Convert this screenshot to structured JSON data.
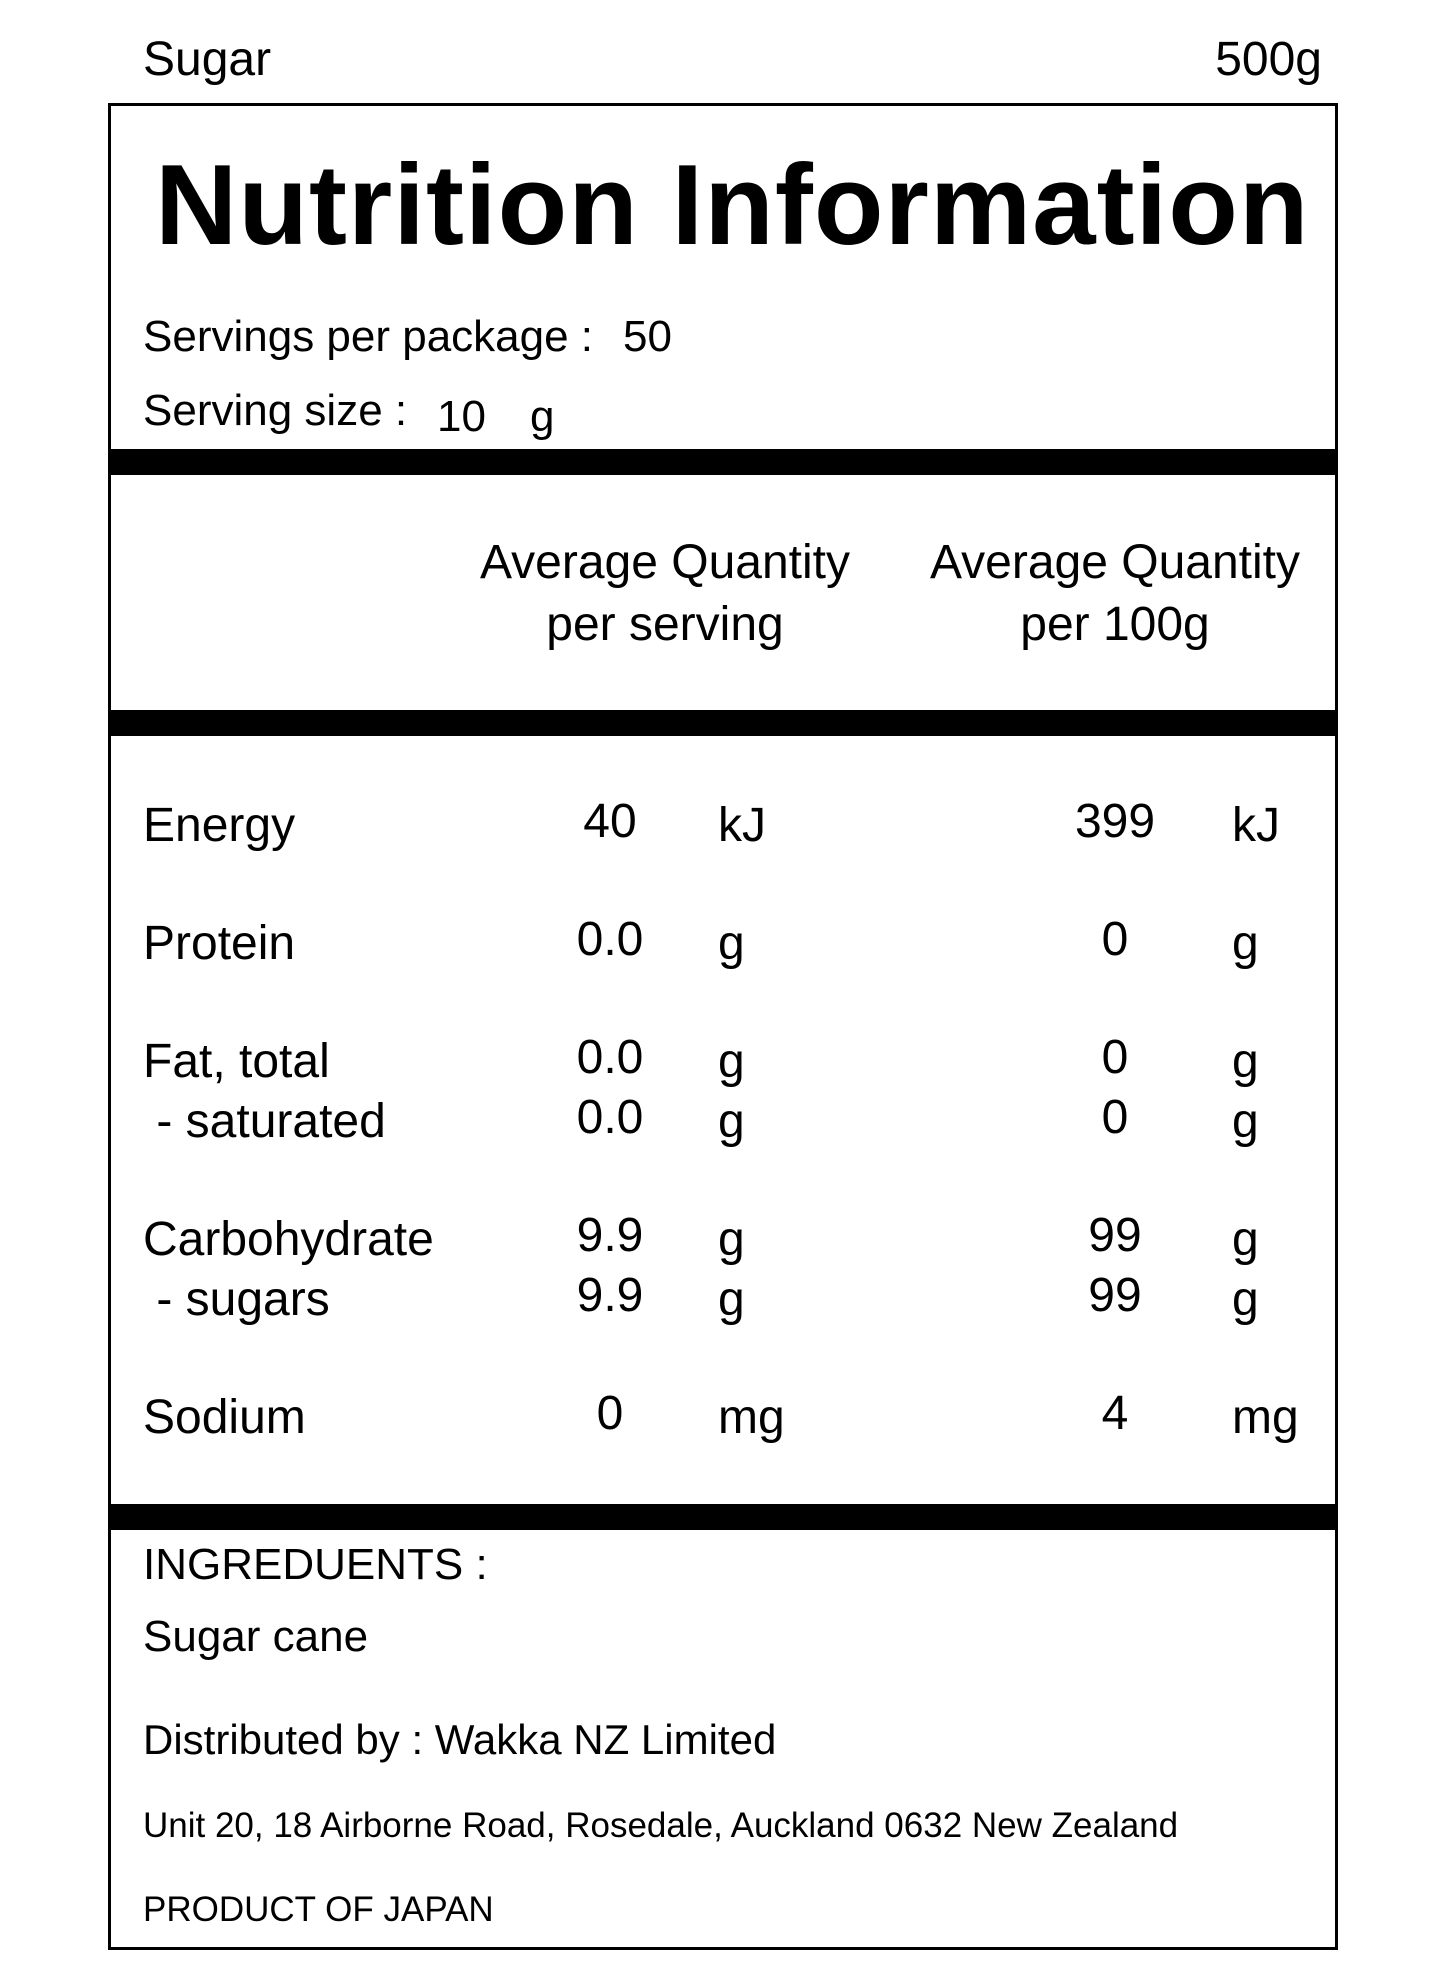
{
  "header": {
    "product": "Sugar",
    "weight": "500g"
  },
  "title": "Nutrition Information",
  "servings": {
    "per_package_label": "Servings per package :",
    "per_package_value": "50",
    "size_label": "Serving size :",
    "size_value": "10",
    "size_unit": "g"
  },
  "columns": {
    "per_serving": [
      "Average Quantity",
      "per serving"
    ],
    "per_100g": [
      "Average Quantity",
      "per 100g"
    ]
  },
  "rows": [
    {
      "name": "Energy",
      "serving": "40",
      "serving_unit": "kJ",
      "per100": "399",
      "per100_unit": "kJ"
    },
    {
      "name": "Protein",
      "serving": "0.0",
      "serving_unit": "g",
      "per100": "0",
      "per100_unit": "g"
    },
    {
      "name": "Fat, total",
      "serving": "0.0",
      "serving_unit": "g",
      "per100": "0",
      "per100_unit": "g"
    },
    {
      "name": " - saturated",
      "serving": "0.0",
      "serving_unit": "g",
      "per100": "0",
      "per100_unit": "g"
    },
    {
      "name": "Carbohydrate",
      "serving": "9.9",
      "serving_unit": "g",
      "per100": "99",
      "per100_unit": "g"
    },
    {
      "name": " - sugars",
      "serving": "9.9",
      "serving_unit": "g",
      "per100": "99",
      "per100_unit": "g"
    },
    {
      "name": "Sodium",
      "serving": "0",
      "serving_unit": "mg",
      "per100": "4",
      "per100_unit": "mg"
    }
  ],
  "ingredients": {
    "heading": "INGREDUENTS :",
    "value": "Sugar cane"
  },
  "distributor": {
    "line": "Distributed by : Wakka NZ Limited",
    "address": "Unit 20, 18 Airborne Road, Rosedale, Auckland 0632 New Zealand",
    "origin": "PRODUCT OF JAPAN"
  }
}
